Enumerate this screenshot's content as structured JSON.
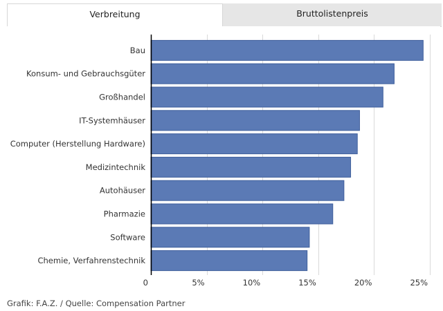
{
  "tabs": [
    {
      "label": "Verbreitung",
      "active": true
    },
    {
      "label": "Bruttolistenpreis",
      "active": false
    }
  ],
  "source": "Grafik: F.A.Z. / Quelle: Compensation Partner",
  "colors": {
    "bar": "#5b7ab5",
    "bar_stroke": "#3f5f9c",
    "grid": "#d9d9d9",
    "axis": "#000000"
  },
  "chart_data": {
    "type": "bar",
    "orientation": "horizontal",
    "categories": [
      "Bau",
      "Konsum- und Gebrauchsgüter",
      "Großhandel",
      "IT-Systemhäuser",
      "Computer (Herstellung Hardware)",
      "Medizintechnik",
      "Autohäuser",
      "Pharmazie",
      "Software",
      "Chemie, Verfahrenstechnik"
    ],
    "values": [
      24.4,
      21.8,
      20.8,
      18.7,
      18.5,
      17.9,
      17.3,
      16.3,
      14.2,
      14.0
    ],
    "xlim": [
      0,
      25
    ],
    "ticks": [
      0,
      5,
      10,
      15,
      20,
      25
    ],
    "tick_labels": [
      "0",
      "5%",
      "10%",
      "15%",
      "20%",
      "25%"
    ],
    "grid": true,
    "title": "",
    "xlabel": "",
    "ylabel": ""
  }
}
